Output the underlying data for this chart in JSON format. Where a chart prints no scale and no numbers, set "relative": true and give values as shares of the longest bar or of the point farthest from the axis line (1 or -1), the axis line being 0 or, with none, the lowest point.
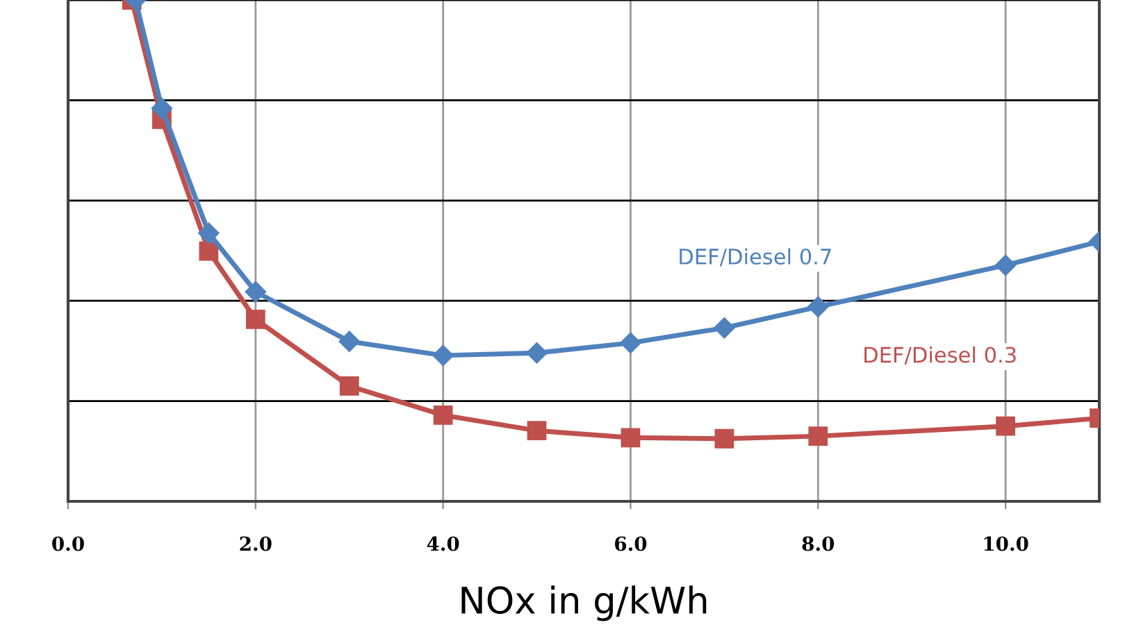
{
  "chart_data": {
    "type": "line",
    "relative": true,
    "xlabel": "NOx in g/kWh",
    "xlim": [
      0,
      11
    ],
    "xticks": [
      {
        "value": 0,
        "label": "0.0"
      },
      {
        "value": 2,
        "label": "2.0"
      },
      {
        "value": 4,
        "label": "4.0"
      },
      {
        "value": 6,
        "label": "6.0"
      },
      {
        "value": 8,
        "label": "8.0"
      },
      {
        "value": 10,
        "label": "10.0"
      }
    ],
    "grid": true,
    "legend": false,
    "series": [
      {
        "name": "DEF/Diesel 0.7",
        "color": "#4f81bd",
        "marker": "diamond",
        "x": [
          0.72,
          1.0,
          1.5,
          2.0,
          3.0,
          4.0,
          5.0,
          6.0,
          7.0,
          8.0,
          10.0,
          11.0
        ],
        "values": [
          1.0,
          0.784,
          0.535,
          0.418,
          0.319,
          0.291,
          0.296,
          0.316,
          0.346,
          0.388,
          0.471,
          0.518
        ]
      },
      {
        "name": "DEF/Diesel 0.3",
        "color": "#c0504d",
        "marker": "square",
        "x": [
          0.68,
          1.0,
          1.5,
          2.0,
          3.0,
          4.0,
          5.0,
          6.0,
          7.0,
          8.0,
          10.0,
          11.0
        ],
        "values": [
          1.0,
          0.762,
          0.499,
          0.363,
          0.23,
          0.172,
          0.141,
          0.127,
          0.125,
          0.13,
          0.15,
          0.166
        ]
      }
    ]
  }
}
